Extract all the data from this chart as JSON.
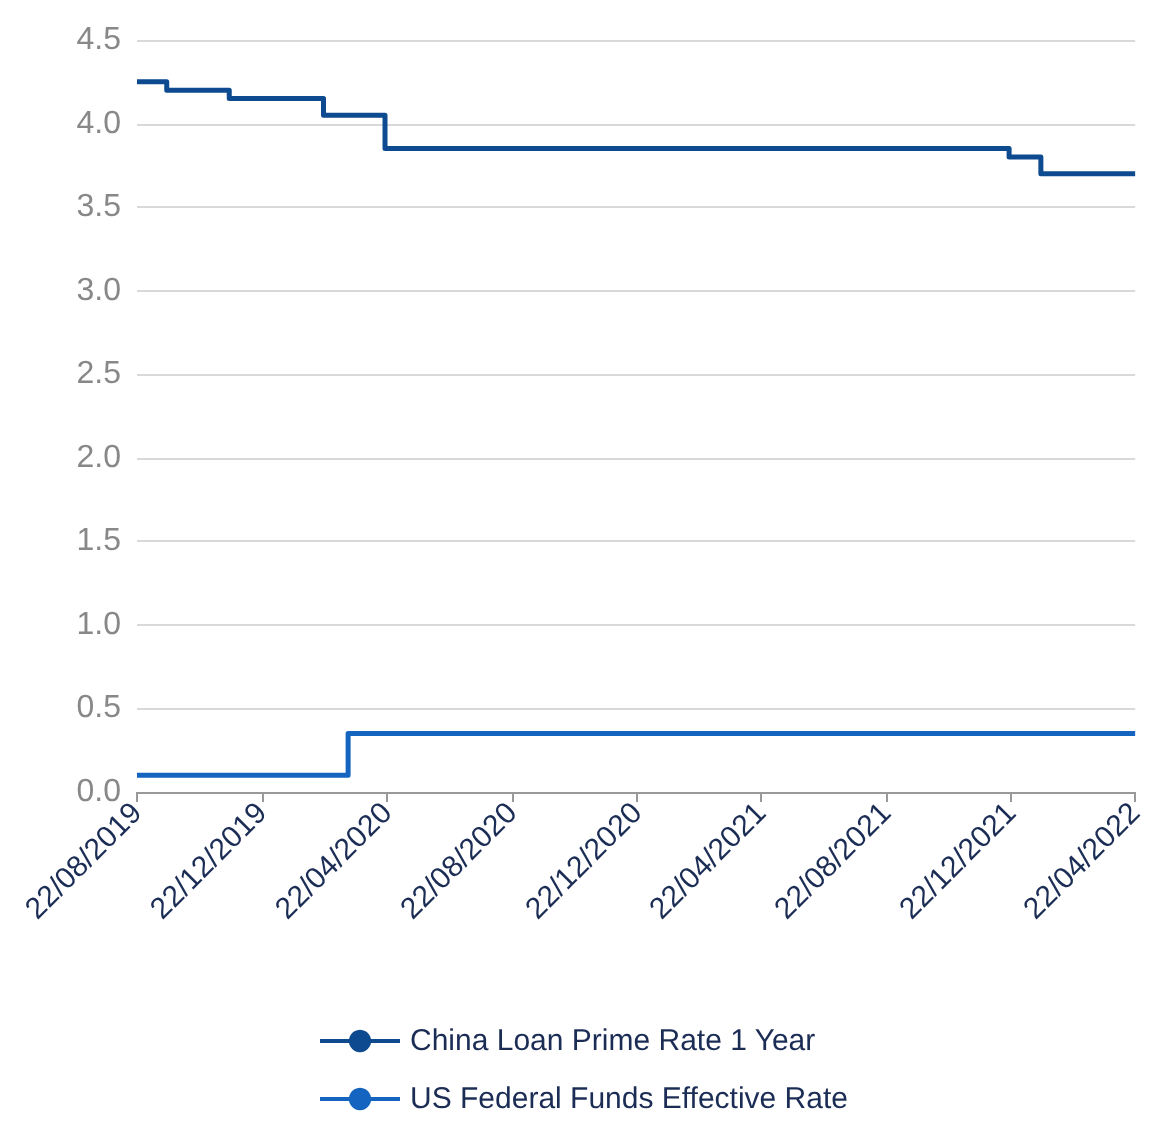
{
  "chart_data": {
    "type": "step",
    "series": [
      {
        "name": "China Loan Prime Rate 1 Year",
        "color": "#0d4a8f",
        "x": [
          "2019-08-22",
          "2019-09-20",
          "2019-11-20",
          "2020-02-20",
          "2020-04-20",
          "2021-12-20",
          "2022-01-20",
          "2022-04-22"
        ],
        "values": [
          4.25,
          4.2,
          4.15,
          4.05,
          3.85,
          3.8,
          3.7,
          3.7
        ]
      },
      {
        "name": "US Federal Funds Effective Rate",
        "color": "#1565c0",
        "x": [
          "2019-08-22",
          "2020-03-15",
          "2022-04-22"
        ],
        "values": [
          0.1,
          0.35,
          0.35
        ]
      }
    ],
    "xlim": [
      "2019-08-22",
      "2022-04-22"
    ],
    "xticks": [
      {
        "value": "2019-08-22",
        "label": "22/08/2019"
      },
      {
        "value": "2019-12-22",
        "label": "22/12/2019"
      },
      {
        "value": "2020-04-22",
        "label": "22/04/2020"
      },
      {
        "value": "2020-08-22",
        "label": "22/08/2020"
      },
      {
        "value": "2020-12-22",
        "label": "22/12/2020"
      },
      {
        "value": "2021-04-22",
        "label": "22/04/2021"
      },
      {
        "value": "2021-08-22",
        "label": "22/08/2021"
      },
      {
        "value": "2021-12-22",
        "label": "22/12/2021"
      },
      {
        "value": "2022-04-22",
        "label": "22/04/2022"
      }
    ],
    "ylim": [
      0,
      4.5
    ],
    "yticks": [
      {
        "value": 0,
        "label": "0.0"
      },
      {
        "value": 0.5,
        "label": "0.5"
      },
      {
        "value": 1,
        "label": "1.0"
      },
      {
        "value": 1.5,
        "label": "1.5"
      },
      {
        "value": 2,
        "label": "2.0"
      },
      {
        "value": 2.5,
        "label": "2.5"
      },
      {
        "value": 3,
        "label": "3.0"
      },
      {
        "value": 3.5,
        "label": "3.5"
      },
      {
        "value": 4,
        "label": "4.0"
      },
      {
        "value": 4.5,
        "label": "4.5"
      }
    ],
    "grid": "y",
    "legend": "bottom",
    "marker": "none",
    "line_style": "solid"
  }
}
